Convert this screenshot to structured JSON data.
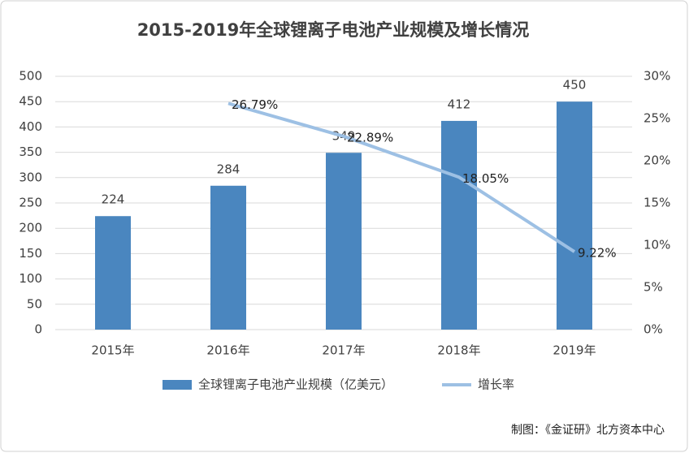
{
  "chart_data": {
    "type": "bar",
    "title": "2015-2019年全球锂离子电池产业规模及增长情况",
    "categories": [
      "2015年",
      "2016年",
      "2017年",
      "2018年",
      "2019年"
    ],
    "series": [
      {
        "name": "全球锂离子电池产业规模（亿美元）",
        "type": "bar",
        "color": "#4a86bf",
        "values": [
          224,
          284,
          349,
          412,
          450
        ]
      },
      {
        "name": "增长率",
        "type": "line",
        "axis": "y2",
        "color": "#9dc0e4",
        "values": [
          null,
          26.79,
          22.89,
          18.05,
          9.22
        ],
        "value_labels": [
          null,
          "26.79%",
          "22.89%",
          "18.05%",
          "9.22%"
        ]
      }
    ],
    "ylim": [
      0,
      500
    ],
    "yticks": [
      0,
      50,
      100,
      150,
      200,
      250,
      300,
      350,
      400,
      450,
      500
    ],
    "y2lim": [
      0,
      30
    ],
    "y2ticks": [
      {
        "value": 0,
        "label": "0%"
      },
      {
        "value": 5,
        "label": "5%"
      },
      {
        "value": 10,
        "label": "10%"
      },
      {
        "value": 15,
        "label": "15%"
      },
      {
        "value": 20,
        "label": "20%"
      },
      {
        "value": 25,
        "label": "25%"
      },
      {
        "value": 30,
        "label": "30%"
      }
    ],
    "grid": true,
    "legend": "bottom",
    "source": "制图：《金证研》北方资本中心"
  }
}
